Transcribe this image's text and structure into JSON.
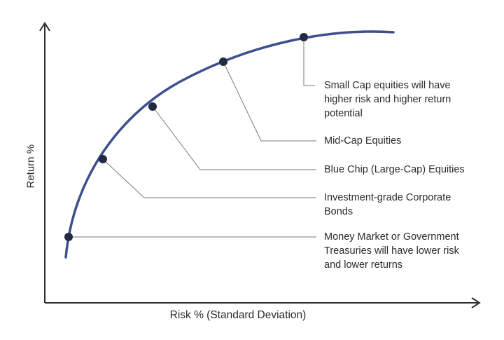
{
  "axes": {
    "x_label": "Risk % (Standard Deviation)",
    "y_label": "Return %"
  },
  "colors": {
    "curve": "#3d4f8e",
    "point": "#222a44",
    "axis": "#2e2e2e",
    "leader": "#7a7a7a",
    "text": "#2b2b2b"
  },
  "annotations": [
    {
      "lines": [
        "Small Cap equities will have",
        "higher risk and higher return",
        "potential"
      ]
    },
    {
      "lines": [
        "Mid-Cap Equities"
      ]
    },
    {
      "lines": [
        "Blue Chip (Large-Cap) Equities"
      ]
    },
    {
      "lines": [
        "Investment-grade Corporate",
        "Bonds"
      ]
    },
    {
      "lines": [
        "Money Market or Government",
        "Treasuries will have lower risk",
        "and lower returns"
      ]
    }
  ]
}
